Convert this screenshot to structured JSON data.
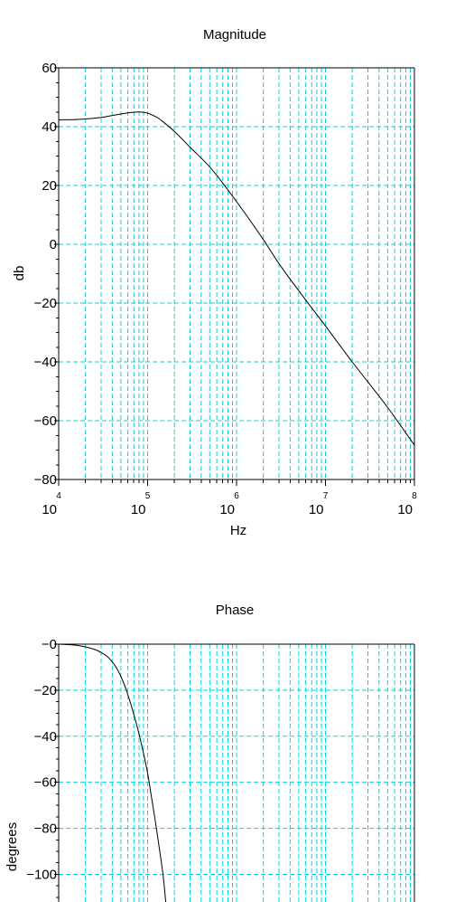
{
  "chart_data": [
    {
      "type": "line",
      "title": "Magnitude",
      "xlabel": "Hz",
      "ylabel": "db",
      "xscale": "log",
      "xlim": [
        10000,
        100000000
      ],
      "ylim": [
        -80,
        60
      ],
      "y_ticks": [
        -80,
        -60,
        -40,
        -20,
        0,
        20,
        40,
        60
      ],
      "y_tick_labels": [
        "−80",
        "−60",
        "−40",
        "−20",
        "0",
        "20",
        "40",
        "60"
      ],
      "x_ticks": [
        {
          "base": "10",
          "exp": "4"
        },
        {
          "base": "10",
          "exp": "5"
        },
        {
          "base": "10",
          "exp": "6"
        },
        {
          "base": "10",
          "exp": "7"
        },
        {
          "base": "10",
          "exp": "8"
        }
      ],
      "grid": true,
      "grid_color": "#00d8d8",
      "line_color": "#000000",
      "series": [
        {
          "x": [
            10000,
            15000,
            20000,
            30000,
            40000,
            50000,
            60000,
            70000,
            80000,
            90000,
            100000,
            110000,
            130000,
            150000,
            200000,
            300000,
            500000,
            1000000,
            2000000,
            3000000,
            10000000,
            20000000,
            50000000,
            100000000
          ],
          "y": [
            42.3,
            42.4,
            42.6,
            43.1,
            43.8,
            44.3,
            44.7,
            44.9,
            45.0,
            44.9,
            44.6,
            44.1,
            43.0,
            41.6,
            38.4,
            33.0,
            26.3,
            14.5,
            1.6,
            -6.6,
            -27.8,
            -40.0,
            -55.5,
            -68.3
          ]
        }
      ]
    },
    {
      "type": "line",
      "title": "Phase",
      "xlabel": "",
      "ylabel": "degrees",
      "xscale": "log",
      "xlim": [
        10000,
        100000000
      ],
      "ylim": [
        -112,
        0
      ],
      "y_ticks": [
        -100,
        -80,
        -60,
        -40,
        -20,
        0
      ],
      "y_tick_labels": [
        "−100",
        "−80",
        "−60",
        "−40",
        "−20",
        "−0"
      ],
      "grid": true,
      "grid_color": "#00d8d8",
      "line_color": "#000000",
      "series": [
        {
          "x": [
            10000,
            15000,
            20000,
            25000,
            30000,
            35000,
            40000,
            45000,
            50000,
            55000,
            60000,
            70000,
            80000,
            90000,
            100000,
            110000,
            120000,
            130000,
            140000,
            150000,
            160000
          ],
          "y": [
            0,
            -0.4,
            -1.2,
            -2.2,
            -3.6,
            -5.3,
            -7.7,
            -10.5,
            -14.0,
            -17.8,
            -22.0,
            -30.5,
            -39.0,
            -47.5,
            -56.0,
            -66.0,
            -75.0,
            -84.0,
            -92.5,
            -101.0,
            -112.0
          ]
        }
      ]
    }
  ]
}
